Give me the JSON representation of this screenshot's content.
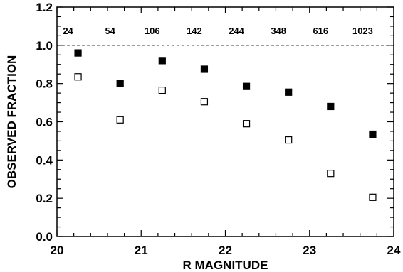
{
  "chart_data": {
    "type": "scatter",
    "title": "",
    "xlabel": "R MAGNITUDE",
    "ylabel": "OBSERVED FRACTION",
    "xlim": [
      20,
      24
    ],
    "ylim": [
      0,
      1.2
    ],
    "x_ticks": [
      "20",
      "21",
      "22",
      "23",
      "24"
    ],
    "y_ticks": [
      "0.0",
      "0.2",
      "0.4",
      "0.6",
      "0.8",
      "1.0",
      "1.2"
    ],
    "x_tick_values": [
      20,
      21,
      22,
      23,
      24
    ],
    "y_tick_values": [
      0,
      0.2,
      0.4,
      0.6,
      0.8,
      1.0,
      1.2
    ],
    "reference_line": {
      "y": 1.0,
      "style": "dashed"
    },
    "x": [
      20.25,
      20.75,
      21.25,
      21.75,
      22.25,
      22.75,
      23.25,
      23.75
    ],
    "counts": [
      "24",
      "54",
      "106",
      "142",
      "244",
      "348",
      "616",
      "1023"
    ],
    "series": [
      {
        "marker": "filled-square",
        "color": "#000000",
        "values": [
          0.96,
          0.8,
          0.92,
          0.875,
          0.785,
          0.755,
          0.68,
          0.535
        ]
      },
      {
        "marker": "open-square",
        "color": "#000000",
        "values": [
          0.835,
          0.61,
          0.765,
          0.705,
          0.59,
          0.505,
          0.33,
          0.205
        ]
      }
    ],
    "grid": false,
    "legend": "none"
  }
}
